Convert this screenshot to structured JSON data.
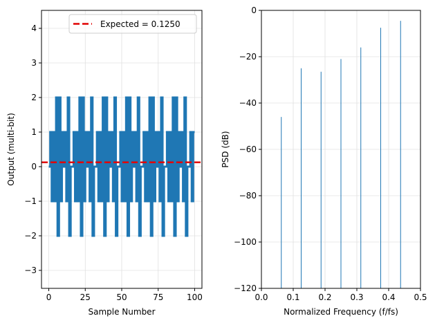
{
  "chart_data": [
    {
      "type": "line",
      "xlabel": "Sample Number",
      "ylabel": "Output (multi-bit)",
      "xlim": [
        -5,
        105
      ],
      "ylim": [
        -3.52,
        4.52
      ],
      "xticks": [
        0,
        25,
        50,
        75,
        100
      ],
      "yticks": [
        -3,
        -2,
        -1,
        0,
        1,
        2,
        3,
        4
      ],
      "grid": true,
      "legend_position": "top-right",
      "series": [
        {
          "style": "step",
          "color": "#1f77b4",
          "values": [
            0,
            1,
            -1,
            1,
            -1,
            2,
            -2,
            2,
            -1,
            1,
            0,
            1,
            -1,
            2,
            -2,
            0,
            0,
            1,
            -1,
            1,
            -1,
            2,
            -2,
            2,
            -1,
            1,
            0,
            1,
            -1,
            2,
            -2,
            0,
            0,
            1,
            -1,
            1,
            -1,
            2,
            -2,
            2,
            -1,
            1,
            0,
            1,
            -1,
            2,
            -2,
            0,
            0,
            1,
            -1,
            1,
            -1,
            2,
            -2,
            2,
            -1,
            1,
            0,
            1,
            -1,
            2,
            -2,
            0,
            0,
            1,
            -1,
            1,
            -1,
            2,
            -2,
            2,
            -1,
            1,
            0,
            1,
            -1,
            2,
            -2,
            0,
            0,
            1,
            -1,
            1,
            -1,
            2,
            -2,
            2,
            -1,
            1,
            0,
            1,
            -1,
            2,
            -2,
            0,
            0,
            1,
            -1,
            1
          ]
        }
      ],
      "hline": {
        "name": "Expected = 0.1250",
        "value": 0.125,
        "color": "#e00000",
        "style": "dashed"
      }
    },
    {
      "type": "bar",
      "xlabel": "Normalized Frequency (f/fs)",
      "ylabel": "PSD (dB)",
      "xlim": [
        0,
        0.5
      ],
      "ylim": [
        -120,
        0
      ],
      "xticks": [
        0.0,
        0.1,
        0.2,
        0.3,
        0.4,
        0.5
      ],
      "yticks": [
        -120,
        -100,
        -80,
        -60,
        -40,
        -20,
        0
      ],
      "grid": true,
      "color": "#1f77b4",
      "x": [
        0.0625,
        0.125,
        0.1875,
        0.25,
        0.3125,
        0.375,
        0.4375
      ],
      "values": [
        -46,
        -25,
        -26.5,
        -21,
        -16,
        -7.5,
        -4.5
      ]
    }
  ]
}
